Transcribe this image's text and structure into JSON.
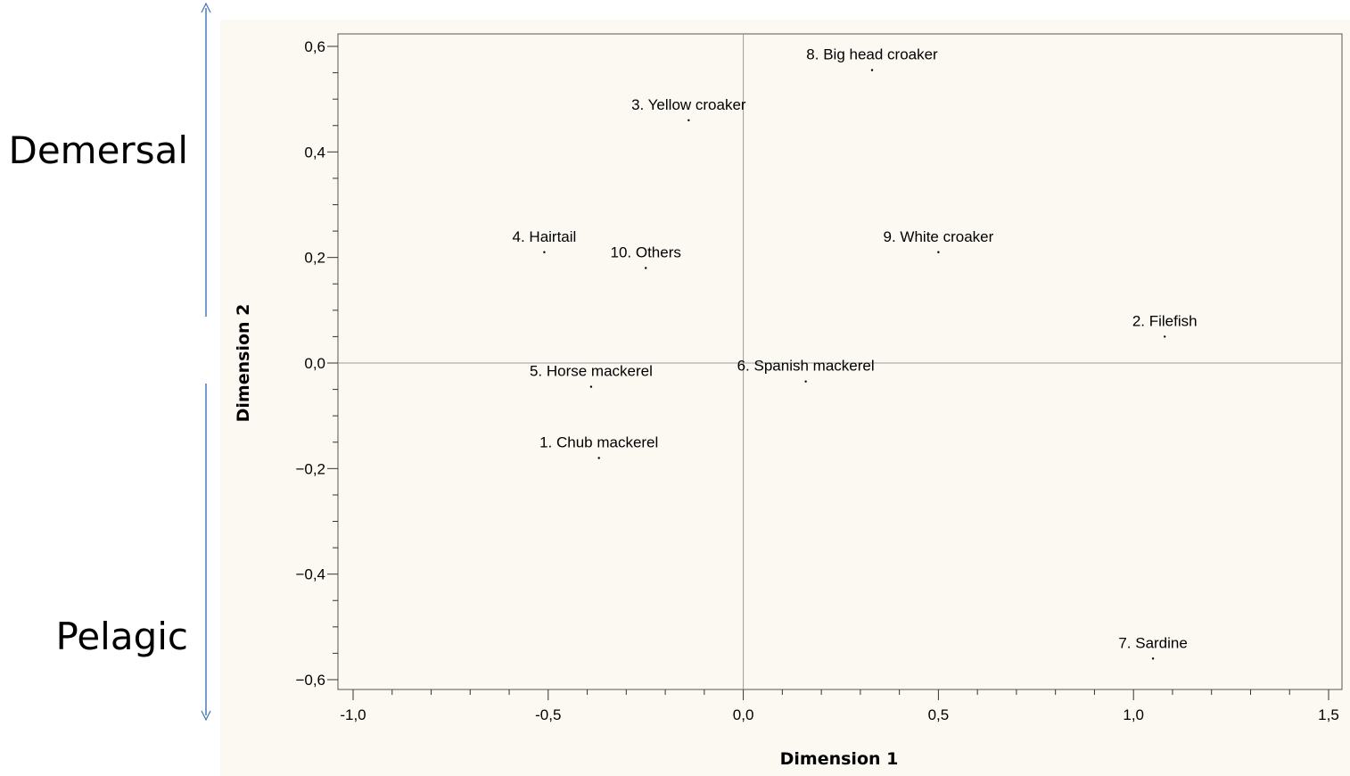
{
  "annotations": {
    "top_label": "Demersal",
    "bottom_label": "Pelagic",
    "arrow_color": "#4a7ab5"
  },
  "chart_data": {
    "type": "scatter",
    "title": "",
    "xlabel": "Dimension 1",
    "ylabel": "Dimension 2",
    "xlim": [
      -1.0,
      1.5
    ],
    "ylim": [
      -0.6,
      0.6
    ],
    "xticks": [
      -1.0,
      -0.5,
      0.0,
      0.5,
      1.0,
      1.5
    ],
    "xtick_labels": [
      "-1,0",
      "-0,5",
      "0,0",
      "0,5",
      "1,0",
      "1,5"
    ],
    "yticks": [
      0.6,
      0.4,
      0.2,
      0.0,
      -0.2,
      -0.4,
      -0.6
    ],
    "ytick_labels": [
      "0,6",
      "0,4",
      "0,2",
      "0,0",
      "−0,2",
      "−0,4",
      "−0,6"
    ],
    "reference_lines": {
      "x": 0.0,
      "y": 0.0
    },
    "grid": false,
    "background": "#fcf9f2",
    "points": [
      {
        "label": "1. Chub mackerel",
        "x": -0.37,
        "y": -0.18
      },
      {
        "label": "2. Filefish",
        "x": 1.08,
        "y": 0.05
      },
      {
        "label": "3. Yellow croaker",
        "x": -0.14,
        "y": 0.46
      },
      {
        "label": "4. Hairtail",
        "x": -0.51,
        "y": 0.21
      },
      {
        "label": "5. Horse mackerel",
        "x": -0.39,
        "y": -0.045
      },
      {
        "label": "6. Spanish mackerel",
        "x": 0.16,
        "y": -0.035
      },
      {
        "label": "7. Sardine",
        "x": 1.05,
        "y": -0.56
      },
      {
        "label": "8. Big head croaker",
        "x": 0.33,
        "y": 0.555
      },
      {
        "label": "9. White croaker",
        "x": 0.5,
        "y": 0.21
      },
      {
        "label": "10. Others",
        "x": -0.25,
        "y": 0.18
      }
    ]
  }
}
